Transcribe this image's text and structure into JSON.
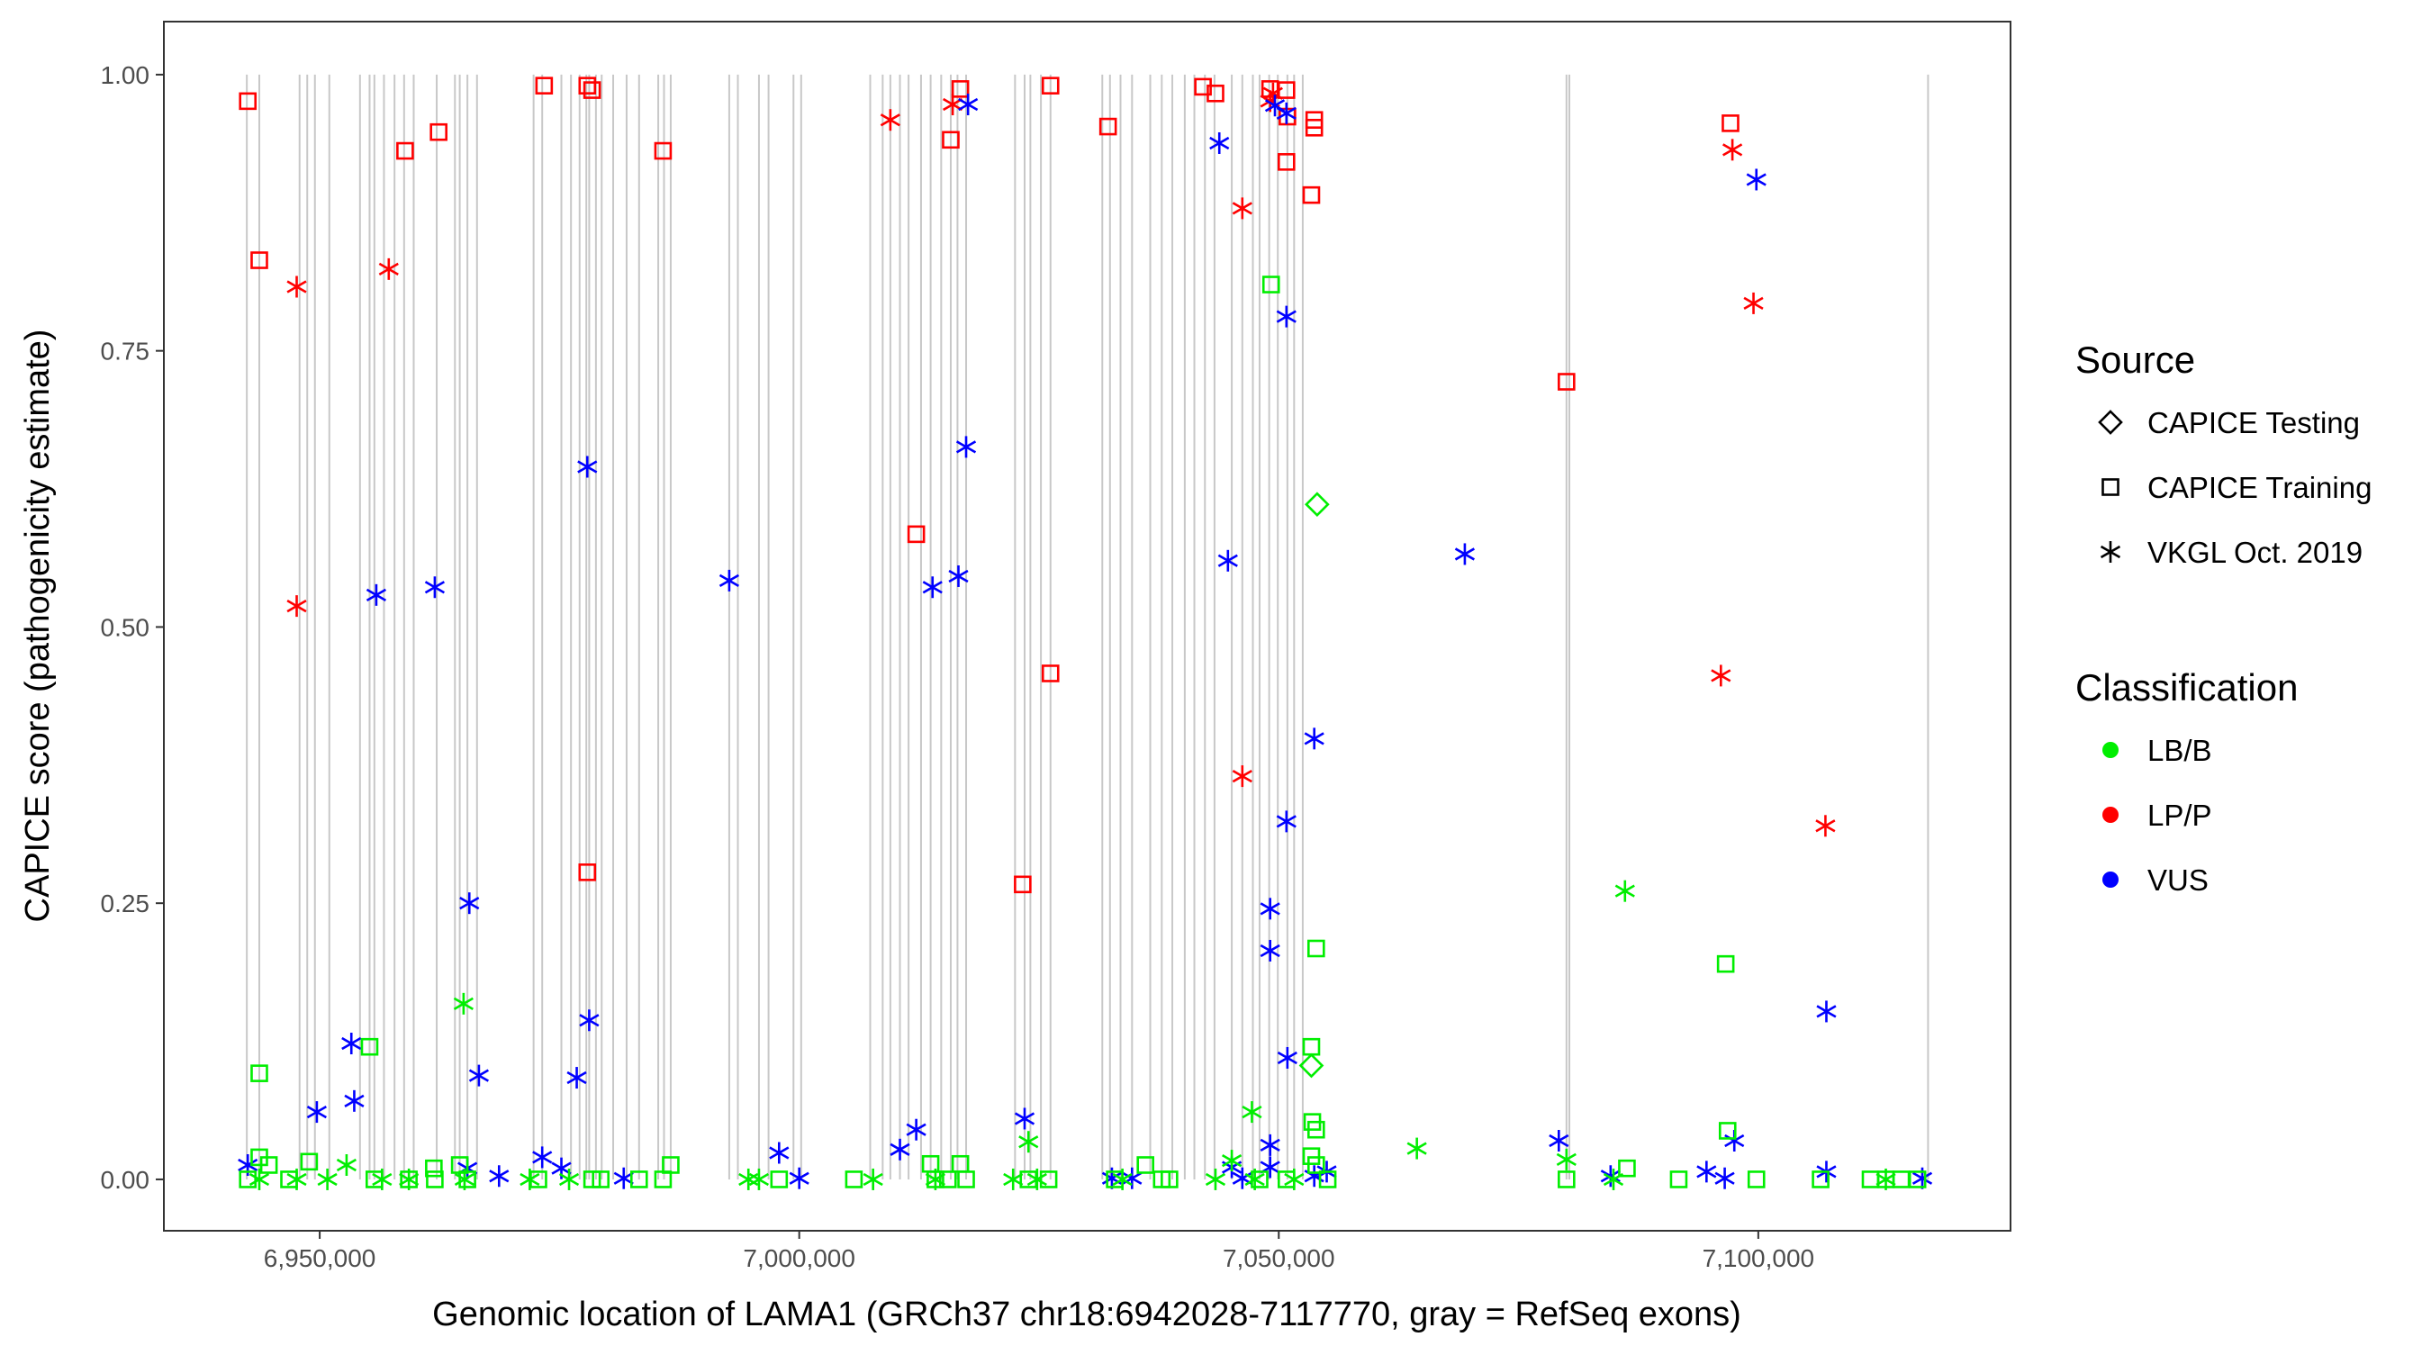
{
  "chart_data": {
    "type": "scatter",
    "title": "",
    "xlabel": "Genomic location of LAMA1 (GRCh37 chr18:6942028-7117770, gray = RefSeq exons)",
    "ylabel": "CAPICE score (pathogenicity estimate)",
    "xlim": [
      6933750,
      7126300
    ],
    "ylim": [
      -0.0465,
      1.048
    ],
    "x_ticks": [
      6950000,
      7000000,
      7050000,
      7100000
    ],
    "x_tick_labels": [
      "6,950,000",
      "7,000,000",
      "7,050,000",
      "7,100,000"
    ],
    "y_ticks": [
      0,
      0.25,
      0.5,
      0.75,
      1.0
    ],
    "y_tick_labels": [
      "0.00",
      "0.25",
      "0.50",
      "0.75",
      "1.00"
    ],
    "grid": false,
    "legend": {
      "placement": "right",
      "source_title": "Source",
      "sources": [
        {
          "key": "T",
          "label": "CAPICE Testing",
          "shape": "diamond"
        },
        {
          "key": "R",
          "label": "CAPICE Training",
          "shape": "square"
        },
        {
          "key": "V",
          "label": "VKGL Oct. 2019",
          "shape": "asterisk"
        }
      ],
      "class_title": "Classification",
      "classes": [
        {
          "key": "LB/B",
          "label": "LB/B",
          "color": "#00ee00"
        },
        {
          "key": "LP/P",
          "label": "LP/P",
          "color": "#ff0000"
        },
        {
          "key": "VUS",
          "label": "VUS",
          "color": "#0000ff"
        }
      ]
    },
    "exon_color": "#c8c8c8",
    "exons": [
      6942400,
      6943700,
      6947900,
      6948700,
      6949500,
      6951000,
      6954200,
      6955200,
      6955700,
      6956700,
      6957800,
      6958800,
      6959800,
      6962200,
      6964100,
      6964600,
      6965400,
      6966400,
      6972300,
      6973200,
      6975200,
      6976200,
      6977100,
      6977800,
      6978100,
      6978800,
      6979400,
      6980600,
      6982000,
      6983300,
      6985300,
      6985900,
      6986600,
      6992700,
      6993600,
      6995800,
      6996800,
      6999400,
      7000200,
      7007400,
      7008700,
      7009500,
      7010500,
      7011400,
      7012700,
      7013700,
      7014800,
      7015800,
      7016500,
      7017400,
      7022500,
      7023500,
      7024100,
      7025200,
      7026200,
      7031600,
      7032400,
      7033500,
      7034700,
      7036600,
      7037800,
      7038900,
      7040200,
      7041200,
      7042300,
      7043300,
      7045100,
      7046200,
      7047300,
      7048000,
      7049000,
      7049900,
      7050900,
      7051600,
      7052500,
      7080000,
      7080300,
      7117700
    ],
    "points_columns": [
      "position",
      "score",
      "source",
      "classification"
    ],
    "points": [
      [
        6942500,
        0.976,
        "R",
        "LP/P"
      ],
      [
        6943700,
        0.832,
        "R",
        "LP/P"
      ],
      [
        6958900,
        0.931,
        "R",
        "LP/P"
      ],
      [
        6962400,
        0.948,
        "R",
        "LP/P"
      ],
      [
        6973400,
        0.99,
        "R",
        "LP/P"
      ],
      [
        6977900,
        0.99,
        "R",
        "LP/P"
      ],
      [
        6978400,
        0.986,
        "R",
        "LP/P"
      ],
      [
        6985800,
        0.931,
        "R",
        "LP/P"
      ],
      [
        6977900,
        0.278,
        "R",
        "LP/P"
      ],
      [
        7012200,
        0.584,
        "R",
        "LP/P"
      ],
      [
        7015800,
        0.941,
        "R",
        "LP/P"
      ],
      [
        7016800,
        0.987,
        "R",
        "LP/P"
      ],
      [
        7026200,
        0.99,
        "R",
        "LP/P"
      ],
      [
        7026200,
        0.458,
        "R",
        "LP/P"
      ],
      [
        7023300,
        0.267,
        "R",
        "LP/P"
      ],
      [
        7032200,
        0.953,
        "R",
        "LP/P"
      ],
      [
        7042100,
        0.989,
        "R",
        "LP/P"
      ],
      [
        7043400,
        0.983,
        "R",
        "LP/P"
      ],
      [
        7049100,
        0.987,
        "R",
        "LP/P"
      ],
      [
        7050800,
        0.986,
        "R",
        "LP/P"
      ],
      [
        7050900,
        0.962,
        "R",
        "LP/P"
      ],
      [
        7050800,
        0.921,
        "R",
        "LP/P"
      ],
      [
        7053700,
        0.959,
        "R",
        "LP/P"
      ],
      [
        7053700,
        0.952,
        "R",
        "LP/P"
      ],
      [
        7053400,
        0.891,
        "R",
        "LP/P"
      ],
      [
        7080000,
        0.722,
        "R",
        "LP/P"
      ],
      [
        7097100,
        0.956,
        "R",
        "LP/P"
      ],
      [
        6947600,
        0.808,
        "V",
        "LP/P"
      ],
      [
        6947600,
        0.519,
        "V",
        "LP/P"
      ],
      [
        6957200,
        0.824,
        "V",
        "LP/P"
      ],
      [
        7009500,
        0.959,
        "V",
        "LP/P"
      ],
      [
        7016000,
        0.973,
        "V",
        "LP/P"
      ],
      [
        7046200,
        0.879,
        "V",
        "LP/P"
      ],
      [
        7046200,
        0.365,
        "V",
        "LP/P"
      ],
      [
        7049100,
        0.976,
        "V",
        "LP/P"
      ],
      [
        7049400,
        0.983,
        "V",
        "LP/P"
      ],
      [
        7097300,
        0.932,
        "V",
        "LP/P"
      ],
      [
        7099500,
        0.793,
        "V",
        "LP/P"
      ],
      [
        7096100,
        0.456,
        "V",
        "LP/P"
      ],
      [
        7107000,
        0.32,
        "V",
        "LP/P"
      ],
      [
        6942500,
        0.013,
        "V",
        "VUS"
      ],
      [
        6949700,
        0.061,
        "V",
        "VUS"
      ],
      [
        6953300,
        0.123,
        "V",
        "VUS"
      ],
      [
        6953600,
        0.071,
        "V",
        "VUS"
      ],
      [
        6955900,
        0.529,
        "V",
        "VUS"
      ],
      [
        6962000,
        0.536,
        "V",
        "VUS"
      ],
      [
        6965600,
        0.25,
        "V",
        "VUS"
      ],
      [
        6966600,
        0.094,
        "V",
        "VUS"
      ],
      [
        6965400,
        0.01,
        "V",
        "VUS"
      ],
      [
        6968700,
        0.003,
        "V",
        "VUS"
      ],
      [
        6973200,
        0.02,
        "V",
        "VUS"
      ],
      [
        6975200,
        0.01,
        "V",
        "VUS"
      ],
      [
        6976800,
        0.092,
        "V",
        "VUS"
      ],
      [
        6977900,
        0.645,
        "V",
        "VUS"
      ],
      [
        6978100,
        0.144,
        "V",
        "VUS"
      ],
      [
        6981700,
        0.001,
        "V",
        "VUS"
      ],
      [
        6992700,
        0.542,
        "V",
        "VUS"
      ],
      [
        6997900,
        0.024,
        "V",
        "VUS"
      ],
      [
        7000000,
        0.001,
        "V",
        "VUS"
      ],
      [
        7010500,
        0.027,
        "V",
        "VUS"
      ],
      [
        7012200,
        0.045,
        "V",
        "VUS"
      ],
      [
        7013900,
        0.536,
        "V",
        "VUS"
      ],
      [
        7016600,
        0.546,
        "V",
        "VUS"
      ],
      [
        7017600,
        0.973,
        "V",
        "VUS"
      ],
      [
        7017400,
        0.663,
        "V",
        "VUS"
      ],
      [
        7023500,
        0.055,
        "V",
        "VUS"
      ],
      [
        7032600,
        0.001,
        "V",
        "VUS"
      ],
      [
        7034700,
        0.001,
        "V",
        "VUS"
      ],
      [
        7043800,
        0.938,
        "V",
        "VUS"
      ],
      [
        7044700,
        0.56,
        "V",
        "VUS"
      ],
      [
        7045100,
        0.011,
        "V",
        "VUS"
      ],
      [
        7046200,
        0.001,
        "V",
        "VUS"
      ],
      [
        7049100,
        0.245,
        "V",
        "VUS"
      ],
      [
        7049100,
        0.207,
        "V",
        "VUS"
      ],
      [
        7049100,
        0.031,
        "V",
        "VUS"
      ],
      [
        7049100,
        0.011,
        "V",
        "VUS"
      ],
      [
        7049600,
        0.972,
        "V",
        "VUS"
      ],
      [
        7050800,
        0.965,
        "V",
        "VUS"
      ],
      [
        7050800,
        0.781,
        "V",
        "VUS"
      ],
      [
        7050800,
        0.324,
        "V",
        "VUS"
      ],
      [
        7050900,
        0.11,
        "V",
        "VUS"
      ],
      [
        7053700,
        0.399,
        "V",
        "VUS"
      ],
      [
        7053700,
        0.003,
        "V",
        "VUS"
      ],
      [
        7055000,
        0.007,
        "V",
        "VUS"
      ],
      [
        7069400,
        0.566,
        "V",
        "VUS"
      ],
      [
        7079200,
        0.035,
        "V",
        "VUS"
      ],
      [
        7084600,
        0.003,
        "V",
        "VUS"
      ],
      [
        7094600,
        0.007,
        "V",
        "VUS"
      ],
      [
        7096500,
        0.001,
        "V",
        "VUS"
      ],
      [
        7097500,
        0.035,
        "V",
        "VUS"
      ],
      [
        7099800,
        0.905,
        "V",
        "VUS"
      ],
      [
        7107100,
        0.152,
        "V",
        "VUS"
      ],
      [
        7107100,
        0.007,
        "V",
        "VUS"
      ],
      [
        7117100,
        0.001,
        "V",
        "VUS"
      ],
      [
        6943700,
        0.096,
        "R",
        "LB/B"
      ],
      [
        6943700,
        0.02,
        "R",
        "LB/B"
      ],
      [
        6955200,
        0.12,
        "R",
        "LB/B"
      ],
      [
        7049200,
        0.81,
        "R",
        "LB/B"
      ],
      [
        7053900,
        0.209,
        "R",
        "LB/B"
      ],
      [
        7053400,
        0.12,
        "R",
        "LB/B"
      ],
      [
        7053500,
        0.052,
        "R",
        "LB/B"
      ],
      [
        7053900,
        0.045,
        "R",
        "LB/B"
      ],
      [
        7096600,
        0.195,
        "R",
        "LB/B"
      ],
      [
        7096800,
        0.044,
        "R",
        "LB/B"
      ],
      [
        6986600,
        0.013,
        "R",
        "LB/B"
      ],
      [
        6944700,
        0.013,
        "R",
        "LB/B"
      ],
      [
        6948900,
        0.016,
        "R",
        "LB/B"
      ],
      [
        6964600,
        0.013,
        "R",
        "LB/B"
      ],
      [
        6961900,
        0.01,
        "R",
        "LB/B"
      ],
      [
        7013700,
        0.014,
        "R",
        "LB/B"
      ],
      [
        7016800,
        0.014,
        "R",
        "LB/B"
      ],
      [
        7036100,
        0.013,
        "R",
        "LB/B"
      ],
      [
        7086300,
        0.01,
        "R",
        "LB/B"
      ],
      [
        7053400,
        0.021,
        "R",
        "LB/B"
      ],
      [
        7053900,
        0.013,
        "R",
        "LB/B"
      ],
      [
        6942500,
        0.0,
        "R",
        "LB/B"
      ],
      [
        6946800,
        0.0,
        "R",
        "LB/B"
      ],
      [
        6955700,
        0.0,
        "R",
        "LB/B"
      ],
      [
        6959300,
        0.0,
        "R",
        "LB/B"
      ],
      [
        6962000,
        0.0,
        "R",
        "LB/B"
      ],
      [
        6965400,
        0.0,
        "R",
        "LB/B"
      ],
      [
        6972800,
        0.0,
        "R",
        "LB/B"
      ],
      [
        6978400,
        0.0,
        "R",
        "LB/B"
      ],
      [
        6979300,
        0.0,
        "R",
        "LB/B"
      ],
      [
        6983300,
        0.0,
        "R",
        "LB/B"
      ],
      [
        6985800,
        0.0,
        "R",
        "LB/B"
      ],
      [
        6997900,
        0.0,
        "R",
        "LB/B"
      ],
      [
        7005700,
        0.0,
        "R",
        "LB/B"
      ],
      [
        7014200,
        0.0,
        "R",
        "LB/B"
      ],
      [
        7015500,
        0.0,
        "R",
        "LB/B"
      ],
      [
        7017400,
        0.0,
        "R",
        "LB/B"
      ],
      [
        7023900,
        0.0,
        "R",
        "LB/B"
      ],
      [
        7026000,
        0.0,
        "R",
        "LB/B"
      ],
      [
        7032900,
        0.0,
        "R",
        "LB/B"
      ],
      [
        7037800,
        0.0,
        "R",
        "LB/B"
      ],
      [
        7038600,
        0.0,
        "R",
        "LB/B"
      ],
      [
        7048000,
        0.0,
        "R",
        "LB/B"
      ],
      [
        7050800,
        0.0,
        "R",
        "LB/B"
      ],
      [
        7055100,
        0.0,
        "R",
        "LB/B"
      ],
      [
        7080000,
        0.0,
        "R",
        "LB/B"
      ],
      [
        7091700,
        0.0,
        "R",
        "LB/B"
      ],
      [
        7099800,
        0.0,
        "R",
        "LB/B"
      ],
      [
        7106500,
        0.0,
        "R",
        "LB/B"
      ],
      [
        7111700,
        0.0,
        "R",
        "LB/B"
      ],
      [
        7113300,
        0.0,
        "R",
        "LB/B"
      ],
      [
        7114900,
        0.0,
        "R",
        "LB/B"
      ],
      [
        7116600,
        0.0,
        "R",
        "LB/B"
      ],
      [
        7054000,
        0.611,
        "T",
        "LB/B"
      ],
      [
        7053400,
        0.103,
        "T",
        "LB/B"
      ],
      [
        6965000,
        0.159,
        "V",
        "LB/B"
      ],
      [
        7047200,
        0.061,
        "V",
        "LB/B"
      ],
      [
        7064400,
        0.028,
        "V",
        "LB/B"
      ],
      [
        7086100,
        0.261,
        "V",
        "LB/B"
      ],
      [
        7023900,
        0.034,
        "V",
        "LB/B"
      ],
      [
        6952800,
        0.013,
        "V",
        "LB/B"
      ],
      [
        7045100,
        0.017,
        "V",
        "LB/B"
      ],
      [
        7080000,
        0.018,
        "V",
        "LB/B"
      ],
      [
        6943700,
        0.0,
        "V",
        "LB/B"
      ],
      [
        6947600,
        0.0,
        "V",
        "LB/B"
      ],
      [
        6950800,
        0.0,
        "V",
        "LB/B"
      ],
      [
        6956500,
        0.0,
        "V",
        "LB/B"
      ],
      [
        6959300,
        0.0,
        "V",
        "LB/B"
      ],
      [
        6965100,
        0.0,
        "V",
        "LB/B"
      ],
      [
        6971900,
        0.0,
        "V",
        "LB/B"
      ],
      [
        6976000,
        0.0,
        "V",
        "LB/B"
      ],
      [
        6994700,
        0.0,
        "V",
        "LB/B"
      ],
      [
        6995800,
        0.0,
        "V",
        "LB/B"
      ],
      [
        7007700,
        0.0,
        "V",
        "LB/B"
      ],
      [
        7014200,
        0.0,
        "V",
        "LB/B"
      ],
      [
        7022300,
        0.0,
        "V",
        "LB/B"
      ],
      [
        7024800,
        0.0,
        "V",
        "LB/B"
      ],
      [
        7033700,
        0.0,
        "V",
        "LB/B"
      ],
      [
        7043400,
        0.0,
        "V",
        "LB/B"
      ],
      [
        7047500,
        0.0,
        "V",
        "LB/B"
      ],
      [
        7051600,
        0.0,
        "V",
        "LB/B"
      ],
      [
        7084900,
        0.0,
        "V",
        "LB/B"
      ],
      [
        7113300,
        0.0,
        "V",
        "LB/B"
      ]
    ]
  }
}
